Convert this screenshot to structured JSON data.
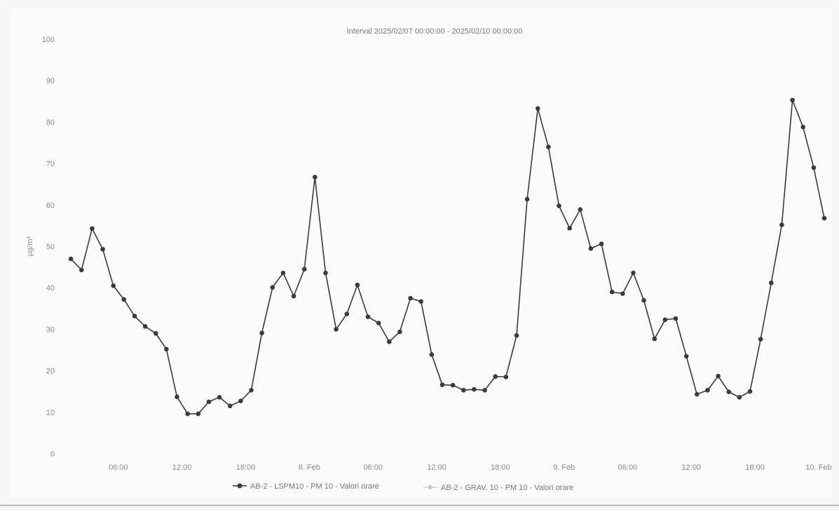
{
  "chart_data": {
    "type": "line",
    "title": "Interval 2025/02/07 00:00:00 - 2025/02/10 00:00:00",
    "xlabel": "",
    "ylabel": "µg/m³",
    "ylim": [
      0,
      100
    ],
    "yticks": [
      0,
      10,
      20,
      30,
      40,
      50,
      60,
      70,
      80,
      90,
      100
    ],
    "x_range_hours": [
      0,
      72
    ],
    "xticks": [
      {
        "hour": 6,
        "label": "06:00"
      },
      {
        "hour": 12,
        "label": "12:00"
      },
      {
        "hour": 18,
        "label": "18:00"
      },
      {
        "hour": 24,
        "label": "8. Feb"
      },
      {
        "hour": 30,
        "label": "06:00"
      },
      {
        "hour": 36,
        "label": "12:00"
      },
      {
        "hour": 42,
        "label": "18:00"
      },
      {
        "hour": 48,
        "label": "9. Feb"
      },
      {
        "hour": 54,
        "label": "06:00"
      },
      {
        "hour": 60,
        "label": "12:00"
      },
      {
        "hour": 66,
        "label": "18:00"
      },
      {
        "hour": 72,
        "label": "10. Feb"
      }
    ],
    "grid": false,
    "legend_position": "bottom",
    "series": [
      {
        "name": "AB-2 - LSPM10 - PM 10 - Valori orare",
        "color": "#3a3a3a",
        "marker": "circle",
        "x_hours": [
          1,
          2,
          3,
          4,
          5,
          6,
          7,
          8,
          9,
          10,
          11,
          12,
          13,
          14,
          15,
          16,
          17,
          18,
          19,
          20,
          21,
          22,
          23,
          24,
          25,
          26,
          27,
          28,
          29,
          30,
          31,
          32,
          33,
          34,
          35,
          36,
          37,
          38,
          39,
          40,
          41,
          42,
          43,
          44,
          45,
          46,
          47,
          48,
          49,
          50,
          51,
          52,
          53,
          54,
          55,
          56,
          57,
          58,
          59,
          60,
          61,
          62,
          63,
          64,
          65,
          66,
          67,
          68,
          69,
          70,
          71,
          72
        ],
        "values": [
          47,
          44.3,
          54.3,
          49.3,
          40.5,
          37.2,
          33.2,
          30.7,
          29,
          25.2,
          13.7,
          9.6,
          9.6,
          12.5,
          13.6,
          11.5,
          12.7,
          15.3,
          29.1,
          40.1,
          43.6,
          38,
          44.5,
          66.7,
          43.6,
          30,
          33.7,
          40.7,
          33,
          31.5,
          27,
          29.4,
          37.5,
          36.7,
          23.9,
          16.6,
          16.5,
          15.3,
          15.5,
          15.3,
          18.6,
          18.5,
          28.5,
          61.4,
          83.3,
          74,
          59.8,
          54.4,
          58.9,
          49.5,
          50.6,
          39,
          38.6,
          43.6,
          37,
          27.7,
          32.3,
          32.6,
          23.5,
          14.3,
          15.3,
          18.7,
          14.9,
          13.6,
          15,
          27.6,
          41.2,
          55.2,
          85.3,
          78.8,
          69,
          56.8
        ]
      },
      {
        "name": "AB-2 - GRAV. 10 - PM 10 - Valori orare",
        "color": "#c8c8c8",
        "marker": "diamond",
        "x_hours": [],
        "values": []
      }
    ]
  }
}
